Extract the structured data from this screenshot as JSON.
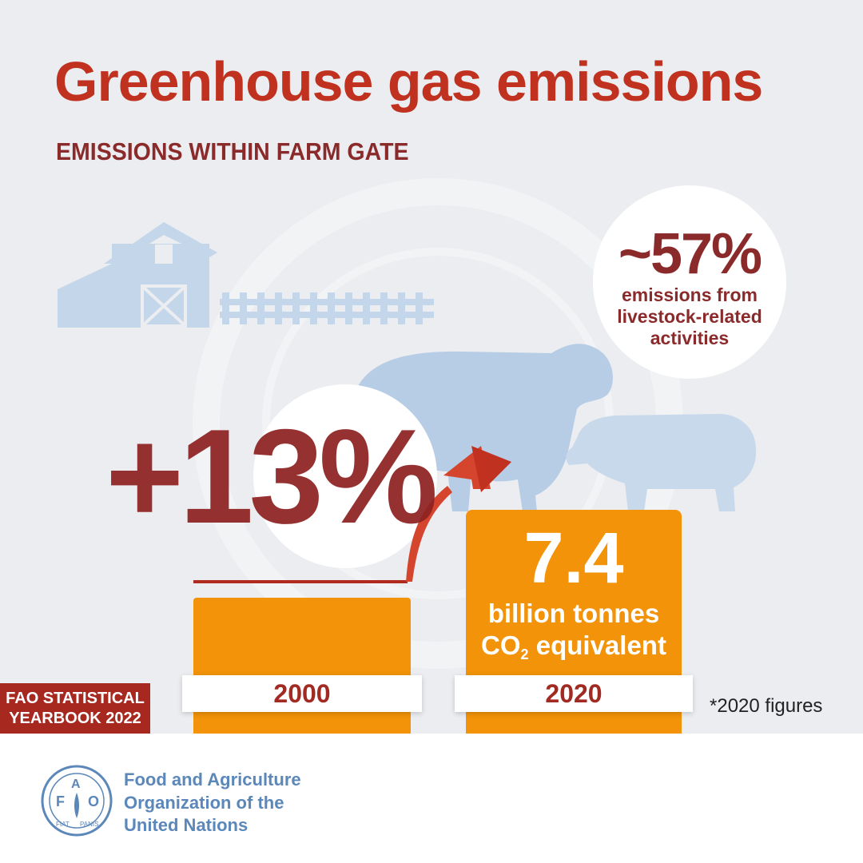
{
  "header": {
    "title": "Greenhouse gas emissions",
    "subtitle": "EMISSIONS WITHIN FARM GATE"
  },
  "livestock_share": {
    "value": "~57%",
    "caption_lines": [
      "emissions from",
      "livestock-related",
      "activities"
    ]
  },
  "growth": {
    "value": "+13%"
  },
  "bars": {
    "bar_2000": {
      "year": "2000"
    },
    "bar_2020": {
      "year": "2020",
      "value": "7.4",
      "unit_line1": "billion tonnes",
      "unit_line2_prefix": "CO",
      "unit_line2_sub": "2",
      "unit_line2_suffix": " equivalent"
    }
  },
  "badge": {
    "line1": "FAO STATISTICAL",
    "line2": "YEARBOOK 2022"
  },
  "footnote": "*2020 figures",
  "footer": {
    "logo_letters": {
      "f": "F",
      "a": "A",
      "o": "O"
    },
    "logo_motto_left": "FIAT",
    "logo_motto_right": "PANIS",
    "org_lines": [
      "Food and Agriculture",
      "Organization of the",
      "United Nations"
    ]
  },
  "colors": {
    "title": "#c0311f",
    "dark_red": "#8b2a2a",
    "orange": "#f29309",
    "illustration_blue": "#c4d6ea",
    "fao_blue": "#5b87b9",
    "background": "#ebedf0"
  },
  "icons": [
    "barn-icon",
    "fence-icon",
    "cow-icon",
    "pig-icon",
    "growth-arrow-icon",
    "fao-logo-icon"
  ]
}
